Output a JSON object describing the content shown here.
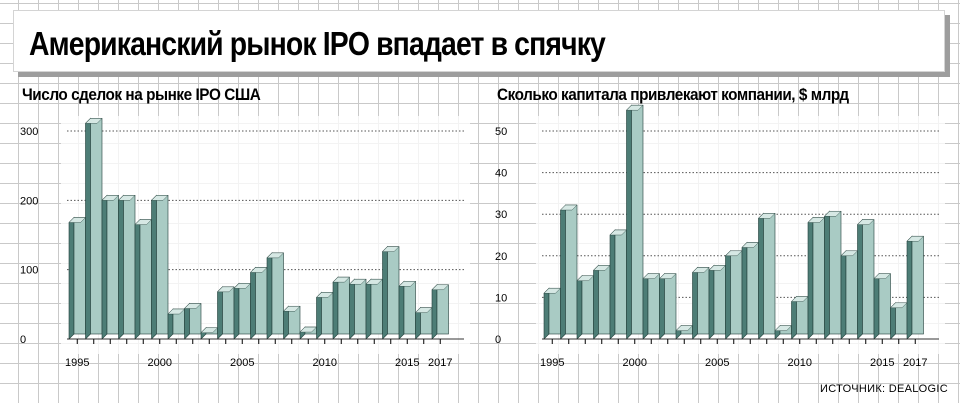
{
  "header": {
    "title": "Американский рынок IPO впадает в спячку"
  },
  "source": "ИСТОЧНИК: DEALOGIC",
  "colors": {
    "bar_front": "#a9cbc4",
    "bar_side": "#4d7d76",
    "bar_top": "#d6e8e4",
    "bar_edge": "#223f3a",
    "grid": "#555555"
  },
  "chart_data": [
    {
      "type": "bar",
      "title": "Число сделок на рынке IPO США",
      "xlabel": "",
      "ylabel": "",
      "ylim": [
        0,
        300
      ],
      "yticks": [
        0,
        100,
        200,
        300
      ],
      "categories": [
        "1995",
        "1996",
        "1997",
        "1998",
        "1999",
        "2000",
        "2001",
        "2002",
        "2003",
        "2004",
        "2005",
        "2006",
        "2007",
        "2008",
        "2009",
        "2010",
        "2011",
        "2012",
        "2013",
        "2014",
        "2015",
        "2016",
        "2017"
      ],
      "values": [
        168,
        311,
        200,
        200,
        165,
        200,
        36,
        44,
        9,
        68,
        73,
        96,
        117,
        40,
        10,
        60,
        82,
        79,
        79,
        126,
        76,
        38,
        71
      ],
      "xtick_labels": [
        "1995",
        "2000",
        "2005",
        "2010",
        "2015",
        "2017"
      ]
    },
    {
      "type": "bar",
      "title": "Сколько капитала привлекают компании, $ млрд",
      "xlabel": "",
      "ylabel": "",
      "ylim": [
        0,
        50
      ],
      "yticks": [
        0,
        10,
        20,
        30,
        40,
        50
      ],
      "categories": [
        "1995",
        "1996",
        "1997",
        "1998",
        "1999",
        "2000",
        "2001",
        "2002",
        "2003",
        "2004",
        "2005",
        "2006",
        "2007",
        "2008",
        "2009",
        "2010",
        "2011",
        "2012",
        "2013",
        "2014",
        "2015",
        "2016",
        "2017"
      ],
      "values": [
        11,
        31,
        14,
        16.5,
        25,
        55,
        14.5,
        14.5,
        2,
        16,
        16.5,
        20,
        22,
        29,
        2,
        9,
        28,
        29.5,
        20,
        27.5,
        14.5,
        7.5,
        23.5
      ],
      "xtick_labels": [
        "1995",
        "2000",
        "2005",
        "2010",
        "2015",
        "2017"
      ]
    }
  ]
}
